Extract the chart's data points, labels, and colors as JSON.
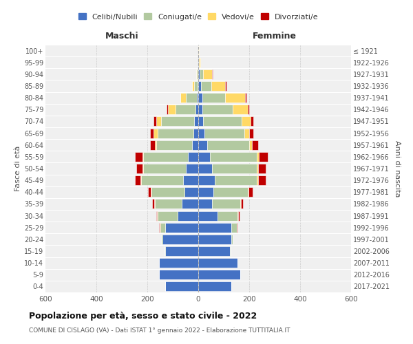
{
  "age_groups": [
    "0-4",
    "5-9",
    "10-14",
    "15-19",
    "20-24",
    "25-29",
    "30-34",
    "35-39",
    "40-44",
    "45-49",
    "50-54",
    "55-59",
    "60-64",
    "65-69",
    "70-74",
    "75-79",
    "80-84",
    "85-89",
    "90-94",
    "95-99",
    "100+"
  ],
  "birth_years": [
    "2017-2021",
    "2012-2016",
    "2007-2011",
    "2002-2006",
    "1997-2001",
    "1992-1996",
    "1987-1991",
    "1982-1986",
    "1977-1981",
    "1972-1976",
    "1967-1971",
    "1962-1966",
    "1957-1961",
    "1952-1956",
    "1947-1951",
    "1942-1946",
    "1937-1941",
    "1932-1936",
    "1927-1931",
    "1922-1926",
    "≤ 1921"
  ],
  "male": {
    "celibe": [
      130,
      155,
      155,
      130,
      140,
      130,
      80,
      65,
      55,
      60,
      50,
      40,
      25,
      20,
      15,
      10,
      5,
      2,
      0,
      0,
      0
    ],
    "coniugato": [
      0,
      0,
      0,
      2,
      5,
      20,
      80,
      105,
      130,
      165,
      165,
      175,
      140,
      140,
      130,
      80,
      45,
      15,
      5,
      0,
      0
    ],
    "vedovo": [
      0,
      0,
      0,
      0,
      0,
      1,
      1,
      2,
      2,
      3,
      3,
      5,
      5,
      15,
      20,
      30,
      20,
      8,
      2,
      0,
      0
    ],
    "divorziato": [
      0,
      0,
      0,
      0,
      0,
      2,
      5,
      8,
      10,
      20,
      25,
      30,
      20,
      15,
      10,
      3,
      0,
      0,
      0,
      0,
      0
    ]
  },
  "female": {
    "nubile": [
      130,
      165,
      155,
      125,
      130,
      130,
      75,
      55,
      60,
      65,
      55,
      45,
      35,
      25,
      20,
      15,
      15,
      10,
      5,
      2,
      0
    ],
    "coniugata": [
      0,
      0,
      0,
      2,
      5,
      20,
      80,
      110,
      135,
      165,
      175,
      185,
      165,
      155,
      150,
      120,
      90,
      40,
      15,
      2,
      0
    ],
    "vedova": [
      0,
      0,
      0,
      0,
      0,
      1,
      1,
      2,
      3,
      5,
      5,
      8,
      10,
      20,
      35,
      60,
      80,
      55,
      35,
      5,
      2
    ],
    "divorziata": [
      0,
      0,
      0,
      0,
      0,
      2,
      5,
      10,
      15,
      30,
      30,
      35,
      25,
      15,
      10,
      5,
      5,
      5,
      2,
      0,
      0
    ]
  },
  "colors": {
    "celibe": "#4472C4",
    "coniugato": "#B2C9A0",
    "vedovo": "#FFD966",
    "divorziato": "#C00000"
  },
  "title": "Popolazione per età, sesso e stato civile - 2022",
  "subtitle": "COMUNE DI CISLAGO (VA) - Dati ISTAT 1° gennaio 2022 - Elaborazione TUTTITALIA.IT",
  "xlabel_left": "Maschi",
  "xlabel_right": "Femmine",
  "ylabel_left": "Fasce di età",
  "ylabel_right": "Anni di nascita",
  "xlim": 600,
  "legend_labels": [
    "Celibi/Nubili",
    "Coniugati/e",
    "Vedovi/e",
    "Divorziati/e"
  ],
  "bg_color": "#ffffff",
  "plot_bg": "#f0f0f0"
}
